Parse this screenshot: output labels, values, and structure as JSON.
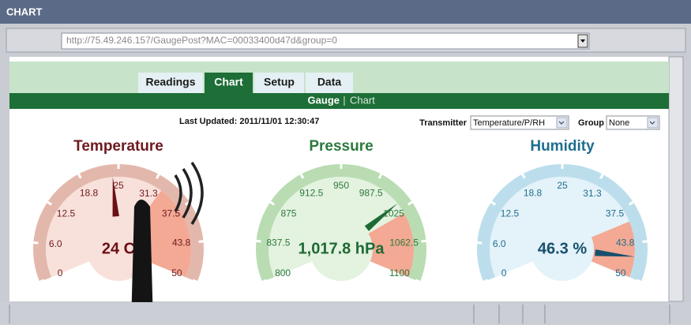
{
  "window": {
    "title": "CHART",
    "url": "http://75.49.246.157/GaugePost?MAC=00033400d47d&group=0"
  },
  "tabs": [
    "Readings",
    "Chart",
    "Setup",
    "Data"
  ],
  "active_tab": 1,
  "subtabs": [
    "Gauge",
    "Chart"
  ],
  "subtab_separator": "|",
  "last_updated": "Last Updated: 2011/11/01 12:30:47",
  "filters": [
    {
      "label": "Transmitter",
      "value": "Temperature/P/RH"
    },
    {
      "label": "Group",
      "value": "None"
    }
  ],
  "gauges": [
    {
      "title": "Temperature",
      "value": 24,
      "value_label": "24 C",
      "alert_from": 33,
      "ticks": [
        0,
        {
          "value": 6,
          "label": "6.0"
        },
        12.5,
        18.8,
        25,
        31.3,
        37.5,
        43.8,
        50
      ],
      "title_color": "#6e1a1e",
      "band_color": "#e3b8ac",
      "fill_color": "#f9e1db",
      "alert_color": "#f3a994",
      "needle_color": "#6a1014"
    },
    {
      "title": "Pressure",
      "value": 1017.8,
      "value_label": "1,017.8 hPa",
      "alert_from": 1030,
      "ticks": [
        800,
        837.5,
        875,
        912.5,
        950,
        987.5,
        1025,
        1062.5,
        1100
      ],
      "title_color": "#2b7a3c",
      "band_color": "#b9dcb2",
      "fill_color": "#e4f2e0",
      "alert_color": "#f3a994",
      "needle_color": "#1e6a34"
    },
    {
      "title": "Humidity",
      "value": 46.3,
      "value_label": "46.3 %",
      "alert_from": 40,
      "ticks": [
        0,
        {
          "value": 6,
          "label": "6.0"
        },
        12.5,
        18.8,
        25,
        31.3,
        37.5,
        43.8,
        50
      ],
      "title_color": "#1f6e8e",
      "band_color": "#bcdeec",
      "fill_color": "#e4f2f9",
      "alert_color": "#f3a994",
      "needle_color": "#17506e"
    }
  ]
}
